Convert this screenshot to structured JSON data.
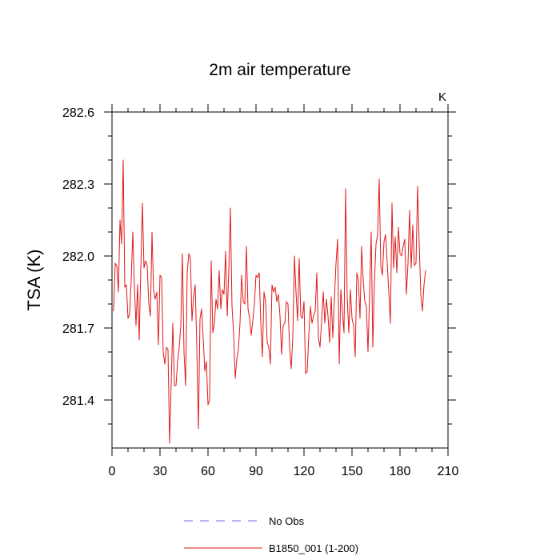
{
  "chart_data": {
    "type": "line",
    "title": "2m air temperature",
    "ylabel": "TSA  (K)",
    "units": "K",
    "xlim": [
      0,
      210
    ],
    "ylim": [
      281.2,
      282.6
    ],
    "xticks": [
      0,
      30,
      60,
      90,
      120,
      150,
      180,
      210
    ],
    "xtick_labels": [
      "0",
      "30",
      "60",
      "90",
      "120",
      "150",
      "180",
      "210"
    ],
    "yticks": [
      281.4,
      281.7,
      282.0,
      282.3,
      282.6
    ],
    "ytick_labels": [
      "281.4",
      "281.7",
      "282.0",
      "282.3",
      "282.6"
    ],
    "legend": [
      {
        "label": "No Obs",
        "color": "#6a6af0",
        "style": "dashed"
      },
      {
        "label": "B1850_001 (1-200)",
        "color": "#e0191b",
        "style": "solid"
      }
    ],
    "series": [
      {
        "name": "B1850_001 (1-200)",
        "color": "#e0191b",
        "x_start": 1,
        "values": [
          281.77,
          281.97,
          281.96,
          281.85,
          282.15,
          282.05,
          282.4,
          281.87,
          281.88,
          281.74,
          281.76,
          281.9,
          282.1,
          281.87,
          281.71,
          281.88,
          281.65,
          281.95,
          282.22,
          281.95,
          281.98,
          281.96,
          281.8,
          281.75,
          282.1,
          281.86,
          281.82,
          281.85,
          281.63,
          281.92,
          281.91,
          281.6,
          281.55,
          281.62,
          281.61,
          281.22,
          281.47,
          281.72,
          281.46,
          281.46,
          281.56,
          281.62,
          281.71,
          282.01,
          281.6,
          281.46,
          281.93,
          282.01,
          281.99,
          281.73,
          281.83,
          281.88,
          281.62,
          281.28,
          281.74,
          281.78,
          281.66,
          281.52,
          281.56,
          281.38,
          281.4,
          281.98,
          281.68,
          281.72,
          281.82,
          281.78,
          281.94,
          281.78,
          281.86,
          281.84,
          282.02,
          281.75,
          281.94,
          282.2,
          281.79,
          281.68,
          281.49,
          281.57,
          281.61,
          281.72,
          281.92,
          281.81,
          281.8,
          282.04,
          281.78,
          281.74,
          281.67,
          281.73,
          281.8,
          281.92,
          281.91,
          281.93,
          281.72,
          281.58,
          281.85,
          281.81,
          281.64,
          281.62,
          281.55,
          281.88,
          281.85,
          281.87,
          281.81,
          281.84,
          281.75,
          281.59,
          281.71,
          281.72,
          281.81,
          281.8,
          281.62,
          281.53,
          281.66,
          282.0,
          281.85,
          281.73,
          281.99,
          281.75,
          281.74,
          281.81,
          281.51,
          281.52,
          281.67,
          281.79,
          281.72,
          281.75,
          281.77,
          281.93,
          281.66,
          281.62,
          281.73,
          281.85,
          281.72,
          281.82,
          281.75,
          281.64,
          281.83,
          281.66,
          281.82,
          281.97,
          282.07,
          281.55,
          281.86,
          281.77,
          281.68,
          282.28,
          281.83,
          281.68,
          281.86,
          281.74,
          281.71,
          281.58,
          281.93,
          281.9,
          281.74,
          282.04,
          281.9,
          281.81,
          281.79,
          281.6,
          281.84,
          282.1,
          281.62,
          281.89,
          282.05,
          282.09,
          282.32,
          281.96,
          281.92,
          282.06,
          282.09,
          281.97,
          281.85,
          281.72,
          282.22,
          281.95,
          282.08,
          281.93,
          282.12,
          282.01,
          282.0,
          282.04,
          282.07,
          281.84,
          281.97,
          282.19,
          281.95,
          282.13,
          281.96,
          281.97,
          282.29,
          282.05,
          281.84,
          281.77,
          281.88,
          281.94
        ]
      }
    ]
  }
}
